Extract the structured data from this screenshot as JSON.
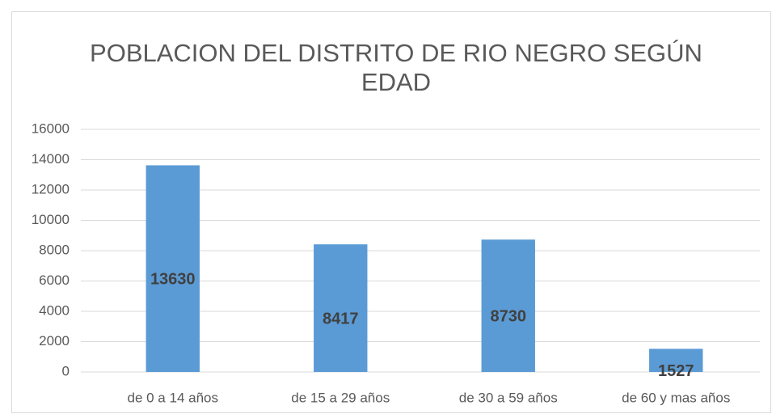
{
  "chart_data": {
    "type": "bar",
    "title": "POBLACION DEL DISTRITO DE RIO NEGRO SEGÚN EDAD",
    "categories": [
      "de 0 a 14 años",
      "de 15 a 29 años",
      "de 30 a 59 años",
      "de 60 y mas años"
    ],
    "values": [
      13630,
      8417,
      8730,
      1527
    ],
    "color": "#5b9bd5",
    "ylim": [
      0,
      16000
    ],
    "yticks": [
      0,
      2000,
      4000,
      6000,
      8000,
      10000,
      12000,
      14000,
      16000
    ],
    "grid": true
  }
}
